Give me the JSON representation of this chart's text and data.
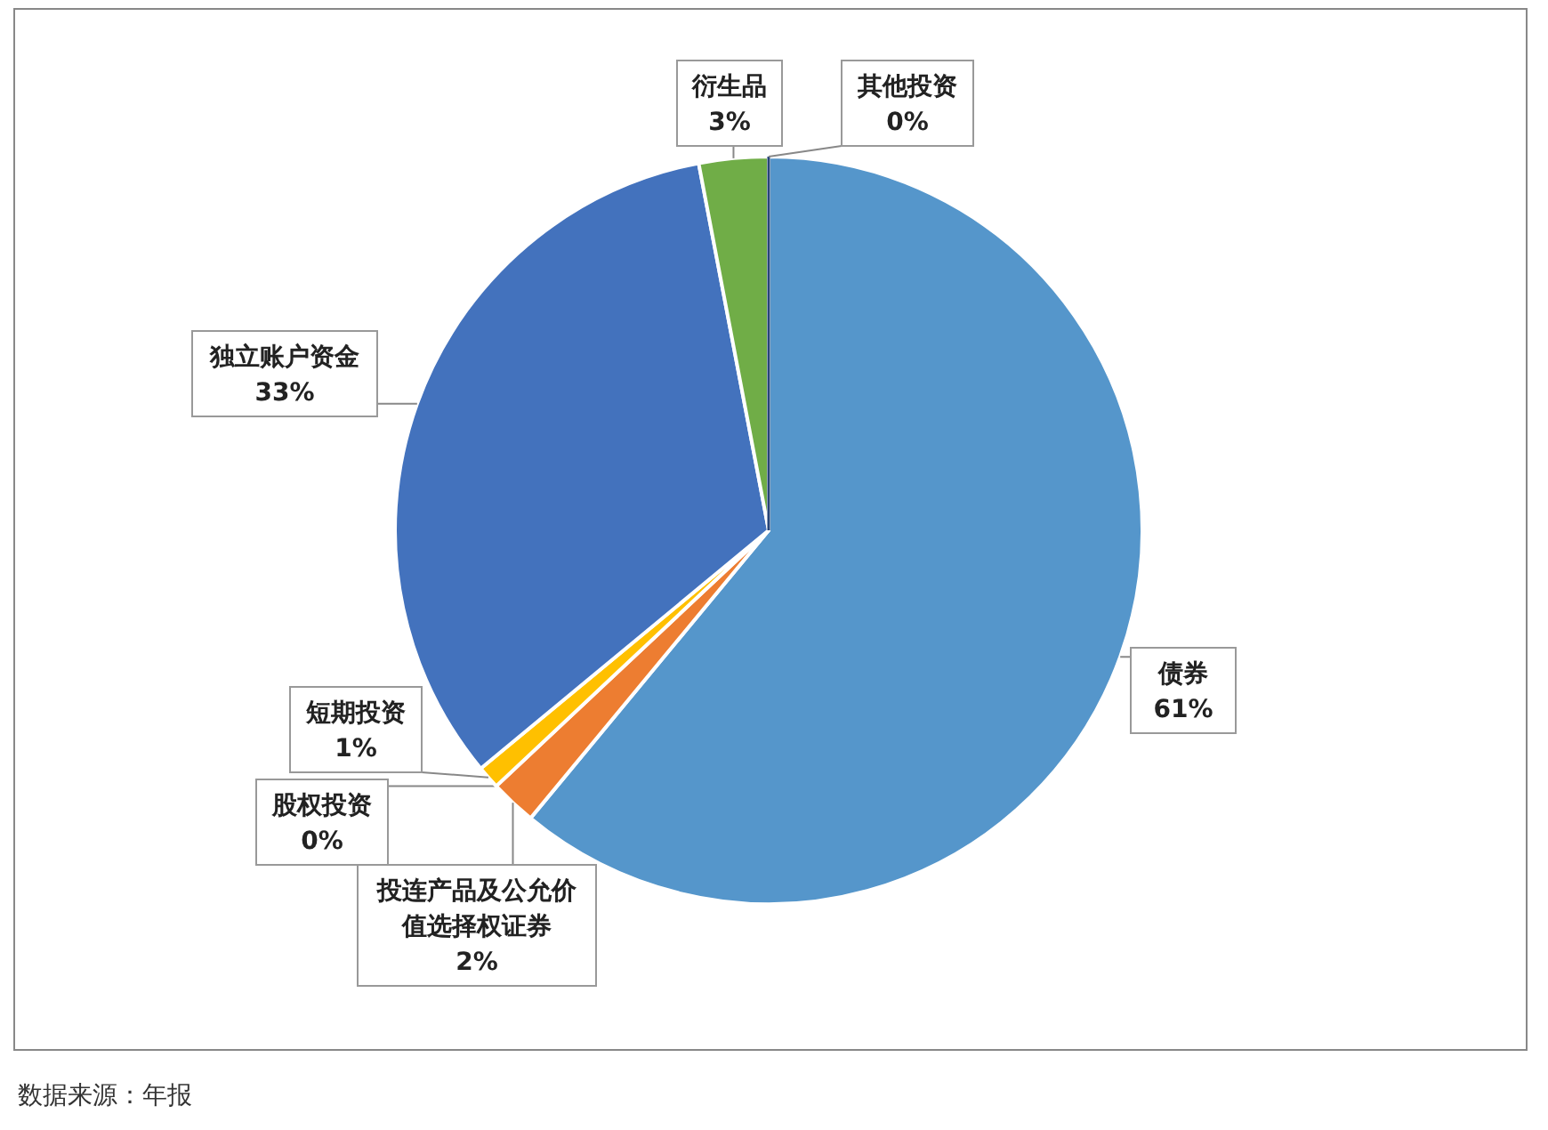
{
  "chart_data": {
    "type": "pie",
    "categories": [
      "债券",
      "投连产品及公允价值选择权证券",
      "股权投资",
      "短期投资",
      "独立账户资金",
      "衍生品",
      "其他投资"
    ],
    "values": [
      61,
      2,
      0,
      1,
      33,
      3,
      0
    ],
    "colors": [
      "#5596cb",
      "#ed7d31",
      "#a5a5a5",
      "#ffc000",
      "#4372bd",
      "#70ad47",
      "#264478"
    ],
    "value_labels": [
      "61%",
      "2%",
      "0%",
      "1%",
      "33%",
      "3%",
      "0%"
    ],
    "legend": false,
    "annotations": [
      "数据来源：年报"
    ]
  }
}
